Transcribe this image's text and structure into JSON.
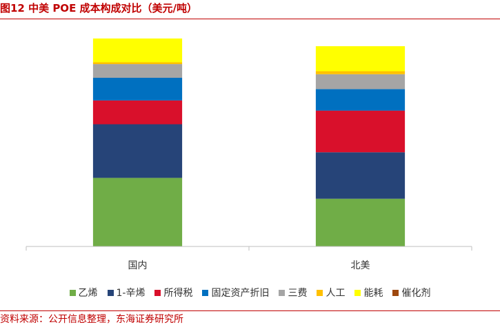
{
  "title": "图12  中美 POE 成本构成对比（美元/吨）",
  "source": "资料来源：公开信息整理，东海证券研究所",
  "chart_data": {
    "type": "bar",
    "stacked": true,
    "categories": [
      "国内",
      "北美"
    ],
    "series": [
      {
        "name": "乙烯",
        "color": "#70ad47",
        "values": [
          1150,
          800
        ]
      },
      {
        "name": "1-辛烯",
        "color": "#264478",
        "values": [
          900,
          780
        ]
      },
      {
        "name": "所得税",
        "color": "#d9102b",
        "values": [
          400,
          700
        ]
      },
      {
        "name": "固定资产折旧",
        "color": "#0070c0",
        "values": [
          380,
          360
        ]
      },
      {
        "name": "三费",
        "color": "#a5a5a5",
        "values": [
          230,
          250
        ]
      },
      {
        "name": "人工",
        "color": "#ffc000",
        "values": [
          30,
          50
        ]
      },
      {
        "name": "能耗",
        "color": "#ffff00",
        "values": [
          400,
          420
        ]
      },
      {
        "name": "催化剂",
        "color": "#9e480e",
        "values": [
          0,
          0
        ]
      }
    ],
    "ylim": [
      0,
      3500
    ],
    "grid": false,
    "legend_position": "bottom"
  }
}
